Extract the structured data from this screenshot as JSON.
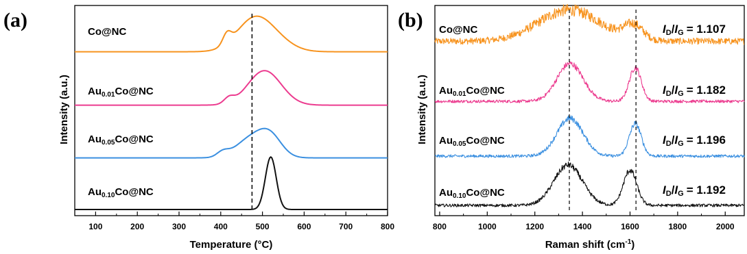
{
  "chart_data": [
    {
      "panel": "(a)",
      "type": "line",
      "xlabel": "Temperature (°C)",
      "ylabel": "Intensity (a.u.)",
      "xlim": [
        50,
        800
      ],
      "xticks": [
        "100",
        "200",
        "300",
        "400",
        "500",
        "600",
        "700",
        "800"
      ],
      "reference_line_x": 475,
      "colors": [
        "#f7931e",
        "#ec3b8f",
        "#3a8fe0",
        "#111111"
      ],
      "series": [
        {
          "label_main": "Co@NC",
          "label_sub": "",
          "label_tail": "",
          "color": "#f7931e",
          "baseline": 0.02,
          "noise": 0.0,
          "peaks": [
            [
              415,
              0.13,
              10
            ],
            [
              480,
              0.39,
              42
            ],
            [
              535,
              0.1,
              40
            ]
          ]
        },
        {
          "label_main": "Au",
          "label_sub": "0.01",
          "label_tail": "Co@NC",
          "color": "#ec3b8f",
          "baseline": 0.02,
          "noise": 0.0,
          "peaks": [
            [
              420,
              0.07,
              12
            ],
            [
              505,
              0.42,
              40
            ]
          ]
        },
        {
          "label_main": "Au",
          "label_sub": "0.05",
          "label_tail": "Co@NC",
          "color": "#3a8fe0",
          "baseline": 0.02,
          "noise": 0.0,
          "peaks": [
            [
              405,
              0.06,
              14
            ],
            [
              470,
              0.22,
              35
            ],
            [
              518,
              0.25,
              28
            ]
          ]
        },
        {
          "label_main": "Au",
          "label_sub": "0.10",
          "label_tail": "Co@NC",
          "color": "#111111",
          "baseline": 0.0,
          "noise": 0.0,
          "peaks": [
            [
              520,
              0.64,
              13
            ]
          ]
        }
      ]
    },
    {
      "panel": "(b)",
      "type": "line",
      "xlabel": "Raman shift (cm",
      "xlabel_sup": "-1",
      "xlabel_tail": ")",
      "ylabel": "Intensity (a.u.)",
      "xlim": [
        780,
        2080
      ],
      "xticks": [
        "800",
        "1000",
        "1200",
        "1400",
        "1600",
        "1800",
        "2000"
      ],
      "reference_lines_x": [
        1345,
        1625
      ],
      "series": [
        {
          "label_main": "Co@NC",
          "label_sub": "",
          "label_tail": "",
          "ratio": "= 1.107",
          "color": "#f7931e",
          "baseline": 0.05,
          "noise": 0.09,
          "peaks": [
            [
              1345,
              0.48,
              130
            ],
            [
              1615,
              0.22,
              40
            ]
          ]
        },
        {
          "label_main": "Au",
          "label_sub": "0.01",
          "label_tail": "Co@NC",
          "ratio": "= 1.182",
          "color": "#ec3b8f",
          "baseline": 0.0,
          "noise": 0.045,
          "peaks": [
            [
              1348,
              0.58,
              55
            ],
            [
              1622,
              0.52,
              25
            ]
          ]
        },
        {
          "label_main": "Au",
          "label_sub": "0.05",
          "label_tail": "Co@NC",
          "ratio": "= 1.196",
          "color": "#3a8fe0",
          "baseline": 0.0,
          "noise": 0.045,
          "peaks": [
            [
              1348,
              0.58,
              55
            ],
            [
              1622,
              0.5,
              25
            ]
          ]
        },
        {
          "label_main": "Au",
          "label_sub": "0.10",
          "label_tail": "Co@NC",
          "ratio": "= 1.192",
          "color": "#111111",
          "baseline": 0.0,
          "noise": 0.045,
          "peaks": [
            [
              1340,
              0.62,
              60
            ],
            [
              1600,
              0.54,
              28
            ]
          ]
        }
      ],
      "ratio_prefix_1": "I",
      "ratio_sub_1": "D",
      "ratio_sep": "/",
      "ratio_prefix_2": "I",
      "ratio_sub_2": "G"
    }
  ]
}
